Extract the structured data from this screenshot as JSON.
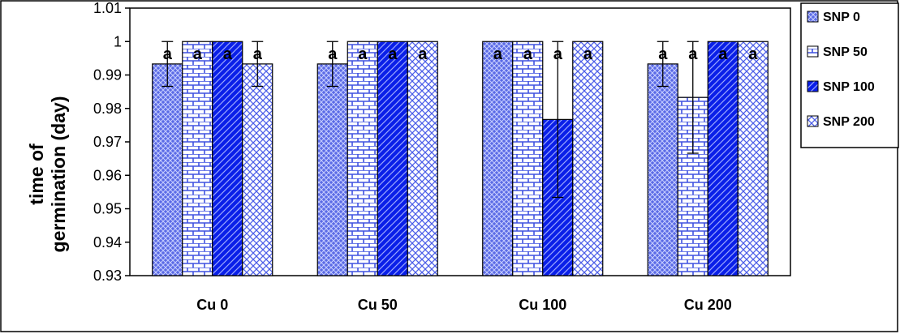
{
  "chart_data": {
    "type": "bar",
    "title": "",
    "xlabel": "",
    "ylabel_lines": [
      "time of",
      "germination (day)"
    ],
    "ylim": [
      0.93,
      1.01
    ],
    "yticks": [
      "0.93",
      "0.94",
      "0.95",
      "0.96",
      "0.97",
      "0.98",
      "0.99",
      "1",
      "1.01"
    ],
    "categories": [
      "Cu 0",
      "Cu 50",
      "Cu 100",
      "Cu 200"
    ],
    "legend_position": "right",
    "grid": false,
    "series": [
      {
        "name": "SNP 0",
        "values": [
          0.9933,
          0.9933,
          1.0,
          0.9933
        ],
        "errors": [
          0.0067,
          0.0067,
          0.0,
          0.0067
        ],
        "letters": [
          "a",
          "a",
          "a",
          "a"
        ],
        "color": "#5b6be6",
        "pattern": "grid"
      },
      {
        "name": "SNP 50",
        "values": [
          1.0,
          1.0,
          1.0,
          0.9833
        ],
        "errors": [
          0.0,
          0.0,
          0.0,
          0.0167
        ],
        "letters": [
          "a",
          "a",
          "a",
          "a"
        ],
        "color": "#3f52e0",
        "pattern": "brick"
      },
      {
        "name": "SNP 100",
        "values": [
          1.0,
          1.0,
          0.9767,
          1.0
        ],
        "errors": [
          0.0,
          0.0,
          0.0233,
          0.0
        ],
        "letters": [
          "a",
          "a",
          "a",
          "a"
        ],
        "color": "#0a1fe8",
        "pattern": "diagonal"
      },
      {
        "name": "SNP 200",
        "values": [
          0.9933,
          1.0,
          1.0,
          1.0
        ],
        "errors": [
          0.0067,
          0.0,
          0.0,
          0.0
        ],
        "letters": [
          "a",
          "a",
          "a",
          "a"
        ],
        "color": "#4c5ee8",
        "pattern": "cross"
      }
    ]
  }
}
